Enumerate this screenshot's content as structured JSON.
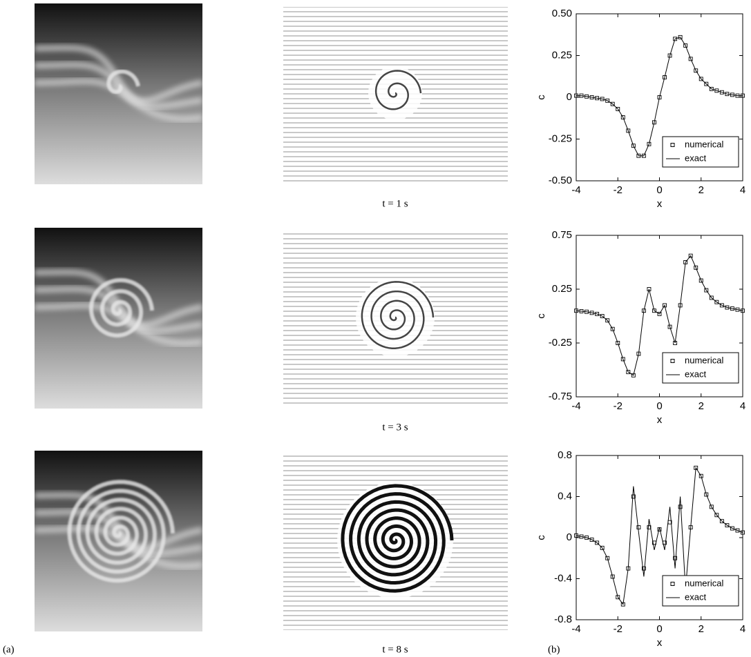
{
  "captions": [
    "t = 1 s",
    "t = 3 s",
    "t = 8 s"
  ],
  "panel_labels": [
    "(a)",
    "(b)"
  ],
  "chart_data": [
    {
      "type": "line",
      "xlabel": "x",
      "ylabel": "c",
      "legend": "lower right",
      "xlim": [
        -4,
        4
      ],
      "xticks": [
        -4,
        -2,
        0,
        2,
        4
      ],
      "ylim": [
        -0.5,
        0.5
      ],
      "yticks": [
        {
          "value": -0.5,
          "label": "-0.50"
        },
        -0.25,
        0,
        0.25,
        {
          "value": 0.5,
          "label": "0.50"
        }
      ],
      "x": [
        -4,
        -3.75,
        -3.5,
        -3.25,
        -3,
        -2.75,
        -2.5,
        -2.25,
        -2,
        -1.75,
        -1.5,
        -1.25,
        -1,
        -0.75,
        -0.5,
        -0.25,
        0,
        0.25,
        0.5,
        0.75,
        1,
        1.25,
        1.5,
        1.75,
        2,
        2.25,
        2.5,
        2.75,
        3,
        3.25,
        3.5,
        3.75,
        4
      ],
      "series": [
        {
          "name": "numerical",
          "color": "#000000",
          "values": [
            0.01,
            0.01,
            0.005,
            0,
            -0.005,
            -0.01,
            -0.02,
            -0.04,
            -0.07,
            -0.12,
            -0.2,
            -0.29,
            -0.35,
            -0.35,
            -0.28,
            -0.15,
            0,
            0.12,
            0.25,
            0.35,
            0.36,
            0.31,
            0.23,
            0.16,
            0.11,
            0.08,
            0.05,
            0.04,
            0.03,
            0.02,
            0.015,
            0.01,
            0.01
          ]
        },
        {
          "name": "exact",
          "color": "#000000",
          "values": [
            0.01,
            0.01,
            0.005,
            0,
            -0.005,
            -0.01,
            -0.02,
            -0.04,
            -0.07,
            -0.12,
            -0.2,
            -0.29,
            -0.35,
            -0.35,
            -0.28,
            -0.15,
            0,
            0.12,
            0.25,
            0.35,
            0.36,
            0.31,
            0.23,
            0.16,
            0.11,
            0.08,
            0.05,
            0.04,
            0.03,
            0.02,
            0.015,
            0.01,
            0.01
          ]
        }
      ]
    },
    {
      "type": "line",
      "xlabel": "x",
      "ylabel": "c",
      "legend": "lower right",
      "xlim": [
        -4,
        4
      ],
      "xticks": [
        -4,
        -2,
        0,
        2,
        4
      ],
      "ylim": [
        -0.75,
        0.75
      ],
      "yticks": [
        -0.75,
        -0.25,
        0.25,
        0.75
      ],
      "x": [
        -4,
        -3.75,
        -3.5,
        -3.25,
        -3,
        -2.75,
        -2.5,
        -2.25,
        -2,
        -1.75,
        -1.5,
        -1.25,
        -1,
        -0.75,
        -0.5,
        -0.25,
        0,
        0.25,
        0.5,
        0.75,
        1,
        1.25,
        1.5,
        1.75,
        2,
        2.25,
        2.5,
        2.75,
        3,
        3.25,
        3.5,
        3.75,
        4
      ],
      "series": [
        {
          "name": "numerical",
          "color": "#000000",
          "values": [
            0.05,
            0.045,
            0.04,
            0.03,
            0.02,
            0,
            -0.04,
            -0.12,
            -0.25,
            -0.4,
            -0.52,
            -0.55,
            -0.35,
            0.05,
            0.25,
            0.05,
            0.02,
            0.1,
            -0.1,
            -0.25,
            0.1,
            0.5,
            0.56,
            0.45,
            0.33,
            0.24,
            0.17,
            0.13,
            0.1,
            0.08,
            0.07,
            0.06,
            0.05
          ]
        },
        {
          "name": "exact",
          "color": "#000000",
          "values": [
            0.05,
            0.045,
            0.04,
            0.03,
            0.02,
            0,
            -0.04,
            -0.12,
            -0.25,
            -0.4,
            -0.52,
            -0.55,
            -0.35,
            0.05,
            0.25,
            0.05,
            0.02,
            0.1,
            -0.1,
            -0.25,
            0.1,
            0.5,
            0.56,
            0.45,
            0.33,
            0.24,
            0.17,
            0.13,
            0.1,
            0.08,
            0.07,
            0.06,
            0.05
          ]
        }
      ]
    },
    {
      "type": "line",
      "xlabel": "x",
      "ylabel": "c",
      "legend": "lower right",
      "xlim": [
        -4,
        4
      ],
      "xticks": [
        -4,
        -2,
        0,
        2,
        4
      ],
      "ylim": [
        -0.8,
        0.8
      ],
      "yticks": [
        -0.8,
        -0.4,
        0,
        0.4,
        0.8
      ],
      "x": [
        -4,
        -3.75,
        -3.5,
        -3.25,
        -3,
        -2.75,
        -2.5,
        -2.25,
        -2,
        -1.75,
        -1.5,
        -1.25,
        -1,
        -0.75,
        -0.5,
        -0.25,
        0,
        0.25,
        0.5,
        0.75,
        1,
        1.25,
        1.5,
        1.75,
        2,
        2.25,
        2.5,
        2.75,
        3,
        3.25,
        3.5,
        3.75,
        4
      ],
      "series": [
        {
          "name": "numerical",
          "color": "#000000",
          "values": [
            0.02,
            0.01,
            0,
            -0.02,
            -0.05,
            -0.1,
            -0.2,
            -0.38,
            -0.58,
            -0.65,
            -0.3,
            0.4,
            0.1,
            -0.3,
            0.1,
            -0.05,
            0.08,
            -0.05,
            0.15,
            -0.2,
            0.3,
            -0.45,
            0.1,
            0.68,
            0.6,
            0.42,
            0.3,
            0.22,
            0.16,
            0.12,
            0.09,
            0.07,
            0.05
          ]
        },
        {
          "name": "exact",
          "color": "#000000",
          "values": [
            0.02,
            0.01,
            0,
            -0.02,
            -0.05,
            -0.1,
            -0.2,
            -0.38,
            -0.58,
            -0.65,
            -0.3,
            0.5,
            0.05,
            -0.38,
            0.18,
            -0.12,
            0.1,
            -0.12,
            0.3,
            -0.3,
            0.4,
            -0.5,
            0.1,
            0.68,
            0.6,
            0.42,
            0.3,
            0.22,
            0.16,
            0.12,
            0.09,
            0.07,
            0.05
          ]
        }
      ]
    }
  ]
}
